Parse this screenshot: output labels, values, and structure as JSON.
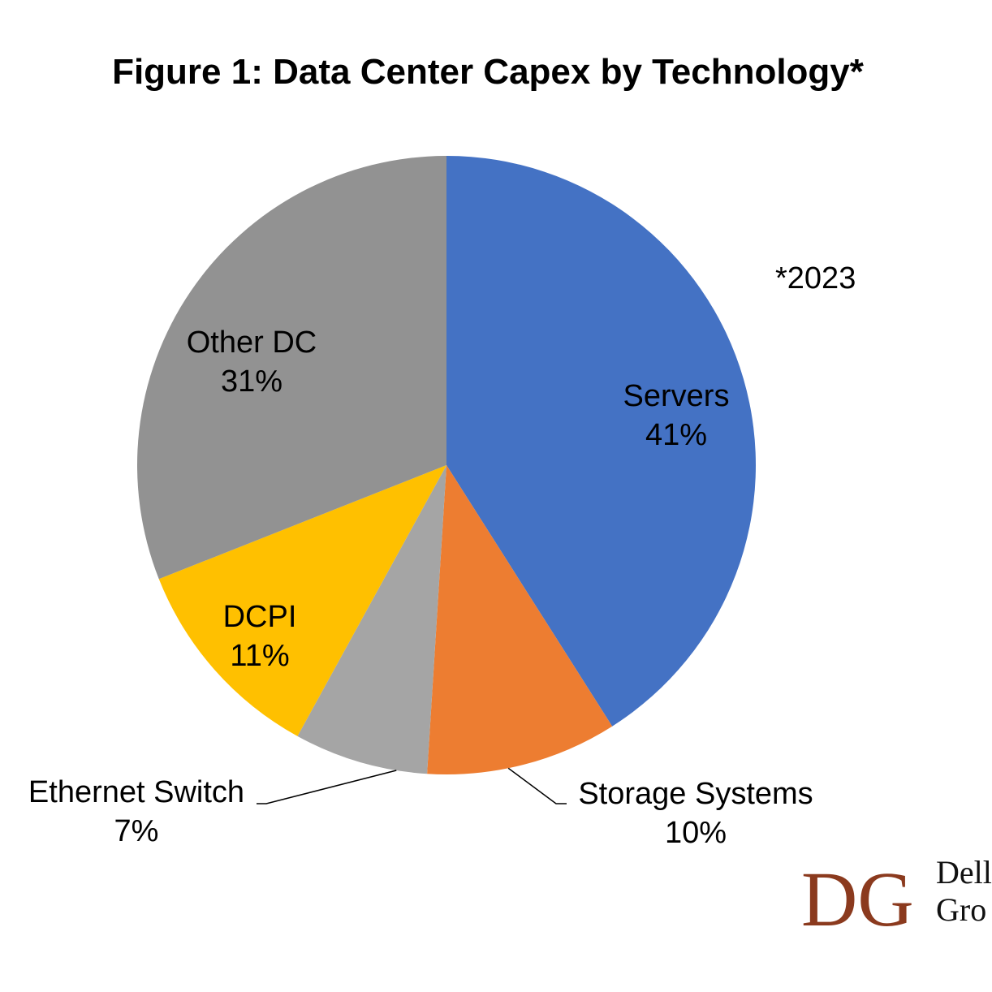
{
  "chart_data": {
    "type": "pie",
    "title": "Figure 1: Data Center Capex by Technology*",
    "annotation": "*2023",
    "slices": [
      {
        "label": "Servers",
        "value": 41,
        "display": "41%",
        "color": "#4472C4"
      },
      {
        "label": "Storage Systems",
        "value": 10,
        "display": "10%",
        "color": "#ED7D31"
      },
      {
        "label": "Ethernet Switch",
        "value": 7,
        "display": "7%",
        "color": "#A5A5A5"
      },
      {
        "label": "DCPI",
        "value": 11,
        "display": "11%",
        "color": "#FFC000"
      },
      {
        "label": "Other DC",
        "value": 31,
        "display": "31%",
        "color": "#929292"
      }
    ],
    "start_angle": "12 o'clock",
    "direction": "clockwise",
    "legend": "none (labels on slices)"
  },
  "logo": {
    "monogram": "DG",
    "line1": "Dell",
    "line2": "Gro",
    "color": "#8B3A1E"
  }
}
